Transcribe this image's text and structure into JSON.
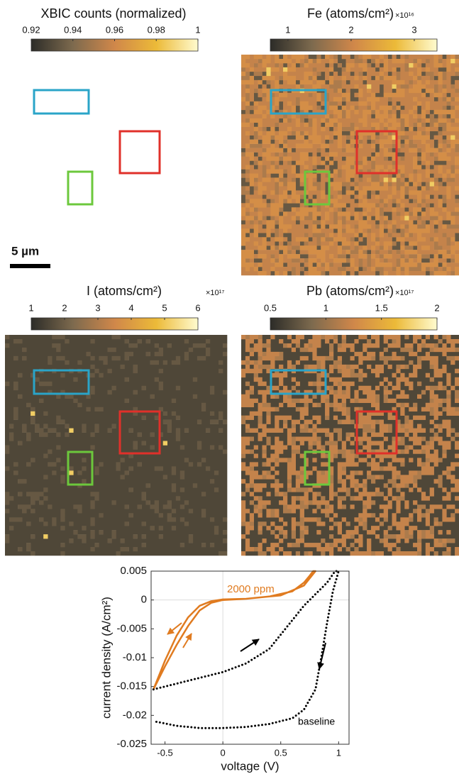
{
  "chart_data": [
    {
      "type": "heatmap",
      "title": "XBIC counts (normalized)",
      "clim": [
        0.92,
        1
      ],
      "cticks": [
        0.92,
        0.94,
        0.96,
        0.98,
        1
      ],
      "scale_bar": "5 µm",
      "colors": [
        "#2c2c28",
        "#7d6a4e",
        "#d0874a",
        "#ecba38",
        "#fffbcf"
      ]
    },
    {
      "type": "heatmap",
      "title": "Fe (atoms/cm²)",
      "multiplier": "×10¹⁶",
      "clim": [
        0.72,
        3.36
      ],
      "cticks": [
        1,
        2,
        3
      ],
      "colors": [
        "#2c2c28",
        "#7d6a4e",
        "#d0874a",
        "#ecba38",
        "#fffbcf"
      ]
    },
    {
      "type": "heatmap",
      "title": "I (atoms/cm²)",
      "multiplier": "×10¹⁷",
      "clim": [
        1,
        6
      ],
      "cticks": [
        1,
        2,
        3,
        4,
        5,
        6
      ],
      "colors": [
        "#2c2c28",
        "#7d6a4e",
        "#d0874a",
        "#ecba38",
        "#fffbcf"
      ]
    },
    {
      "type": "heatmap",
      "title": "Pb (atoms/cm²)",
      "multiplier": "×10¹⁷",
      "clim": [
        0.5,
        2
      ],
      "cticks": [
        0.5,
        1,
        1.5,
        2
      ],
      "colors": [
        "#2c2c28",
        "#7d6a4e",
        "#d0874a",
        "#ecba38",
        "#fffbcf"
      ]
    },
    {
      "type": "line",
      "xlabel": "voltage (V)",
      "ylabel": "current density (A/cm²)",
      "xlim": [
        -0.62,
        1.09
      ],
      "ylim": [
        -0.025,
        0.005
      ],
      "xticks": [
        -0.5,
        0,
        0.5,
        1
      ],
      "yticks": [
        -0.025,
        -0.02,
        -0.015,
        -0.01,
        -0.005,
        0,
        0.005
      ],
      "zero_lines": true,
      "series": [
        {
          "name": "2000 ppm",
          "color": "#e07b20",
          "dashed": false,
          "x": [
            -0.6,
            -0.5,
            -0.4,
            -0.3,
            -0.2,
            -0.1,
            0,
            0.2,
            0.4,
            0.6,
            0.7,
            0.75,
            0.78,
            0.8,
            0.7,
            0.5,
            0.2,
            0,
            -0.1,
            -0.2,
            -0.3,
            -0.4,
            -0.5,
            -0.6
          ],
          "values": [
            -0.0155,
            -0.0115,
            -0.0078,
            -0.0045,
            -0.0018,
            -0.0005,
            0,
            0.0002,
            0.0006,
            0.0015,
            0.003,
            0.0042,
            0.005,
            0.005,
            0.0025,
            0.0008,
            0.0002,
            0.0001,
            -0.0002,
            -0.001,
            -0.003,
            -0.0062,
            -0.0105,
            -0.0155
          ]
        },
        {
          "name": "baseline",
          "color": "#000000",
          "dashed": true,
          "x": [
            -0.6,
            -0.3,
            0,
            0.2,
            0.4,
            0.5,
            0.6,
            0.7,
            0.8,
            0.9,
            0.97,
            1.0,
            0.95,
            0.9,
            0.85,
            0.8,
            0.7,
            0.6,
            0.4,
            0.2,
            0,
            -0.2,
            -0.4,
            -0.6
          ],
          "values": [
            -0.0155,
            -0.014,
            -0.0125,
            -0.011,
            -0.0085,
            -0.006,
            -0.0035,
            -0.001,
            0.001,
            0.003,
            0.005,
            0.005,
            0.0015,
            -0.004,
            -0.01,
            -0.0155,
            -0.019,
            -0.0205,
            -0.0215,
            -0.022,
            -0.0222,
            -0.0222,
            -0.0218,
            -0.021
          ]
        }
      ]
    }
  ]
}
